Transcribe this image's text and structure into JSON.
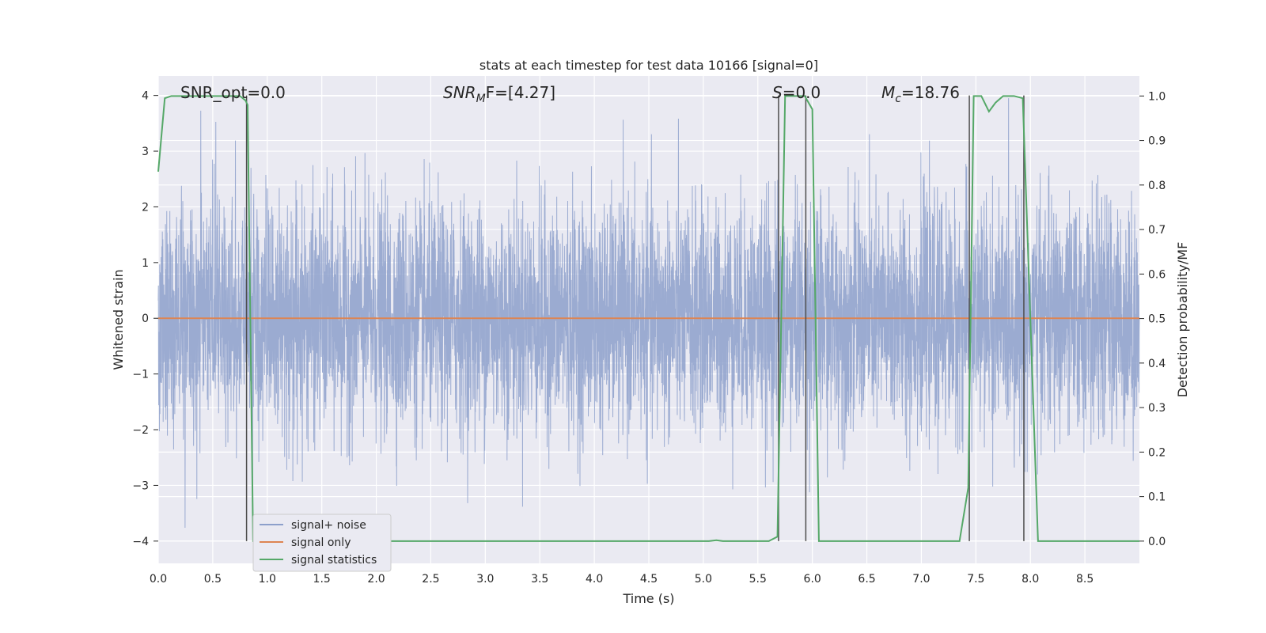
{
  "chart_data": {
    "type": "line",
    "title": "stats at each timestep for test data 10166 [signal=0]",
    "xlabel": "Time (s)",
    "ylabel": "Whitened strain",
    "y2label": "Detection probability/MF",
    "xlim": [
      0,
      9
    ],
    "ylim": [
      -4.4,
      4.35
    ],
    "y2lim": [
      -0.05,
      1.045
    ],
    "x_ticks": [
      0.0,
      0.5,
      1.0,
      1.5,
      2.0,
      2.5,
      3.0,
      3.5,
      4.0,
      4.5,
      5.0,
      5.5,
      6.0,
      6.5,
      7.0,
      7.5,
      8.0,
      8.5
    ],
    "x_tick_labels": [
      "0.0",
      "0.5",
      "1.0",
      "1.5",
      "2.0",
      "2.5",
      "3.0",
      "3.5",
      "4.0",
      "4.5",
      "5.0",
      "5.5",
      "6.0",
      "6.5",
      "7.0",
      "7.5",
      "8.0",
      "8.5"
    ],
    "y_ticks": [
      -4,
      -3,
      -2,
      -1,
      0,
      1,
      2,
      3,
      4
    ],
    "y_tick_labels": [
      "−4",
      "−3",
      "−2",
      "−1",
      "0",
      "1",
      "2",
      "3",
      "4"
    ],
    "y2_ticks": [
      0.0,
      0.1,
      0.2,
      0.3,
      0.4,
      0.5,
      0.6,
      0.7,
      0.8,
      0.9,
      1.0
    ],
    "y2_tick_labels": [
      "0.0",
      "0.1",
      "0.2",
      "0.3",
      "0.4",
      "0.5",
      "0.6",
      "0.7",
      "0.8",
      "0.9",
      "1.0"
    ],
    "grid": true,
    "legend_position": "bottom-left",
    "annotations": {
      "snr_opt": "SNR_opt=0.0",
      "snr_mf_main": "SNR",
      "snr_mf_sub": "M",
      "snr_mf_rest": "F=[4.27]",
      "s_main": "S",
      "s_rest": "=0.0",
      "mc_main": "M",
      "mc_sub": "c",
      "mc_rest": "=18.76"
    },
    "series": [
      {
        "name": "signal+ noise",
        "color": "#8da0cb",
        "axis": "left",
        "description_level": "whitened strain noise, sigma ~1, range -4 to 4",
        "sample_rate_hz": 2048,
        "duration_s": 9
      },
      {
        "name": "signal only",
        "color": "#dd8452",
        "axis": "left",
        "x": [
          0,
          9
        ],
        "y": [
          0,
          0
        ]
      },
      {
        "name": "signal statistics",
        "color": "#55a868",
        "axis": "right",
        "x": [
          0.0,
          0.06,
          0.12,
          0.5,
          0.75,
          0.8,
          0.82,
          0.87,
          0.92,
          5.05,
          5.12,
          5.18,
          5.6,
          5.68,
          5.75,
          5.93,
          6.0,
          6.06,
          7.35,
          7.43,
          7.48,
          7.55,
          7.62,
          7.68,
          7.75,
          7.85,
          7.93,
          8.07,
          9.0
        ],
        "y": [
          0.83,
          0.995,
          1.0,
          1.0,
          1.0,
          0.99,
          0.98,
          0.0,
          0.0,
          0.0,
          0.002,
          0.0,
          0.0,
          0.01,
          1.0,
          1.0,
          0.97,
          0.0,
          0.0,
          0.12,
          1.0,
          1.0,
          0.965,
          0.985,
          1.0,
          1.0,
          0.995,
          0.0,
          0.0
        ]
      }
    ],
    "vertical_lines": [
      0.81,
      5.69,
      5.94,
      7.44,
      7.94
    ],
    "colors": {
      "plot_bg": "#eaeaf2",
      "grid": "#ffffff",
      "vline": "#4d4d4d",
      "legend_bg": "#eaeaf2",
      "legend_border": "#cccccc"
    }
  }
}
